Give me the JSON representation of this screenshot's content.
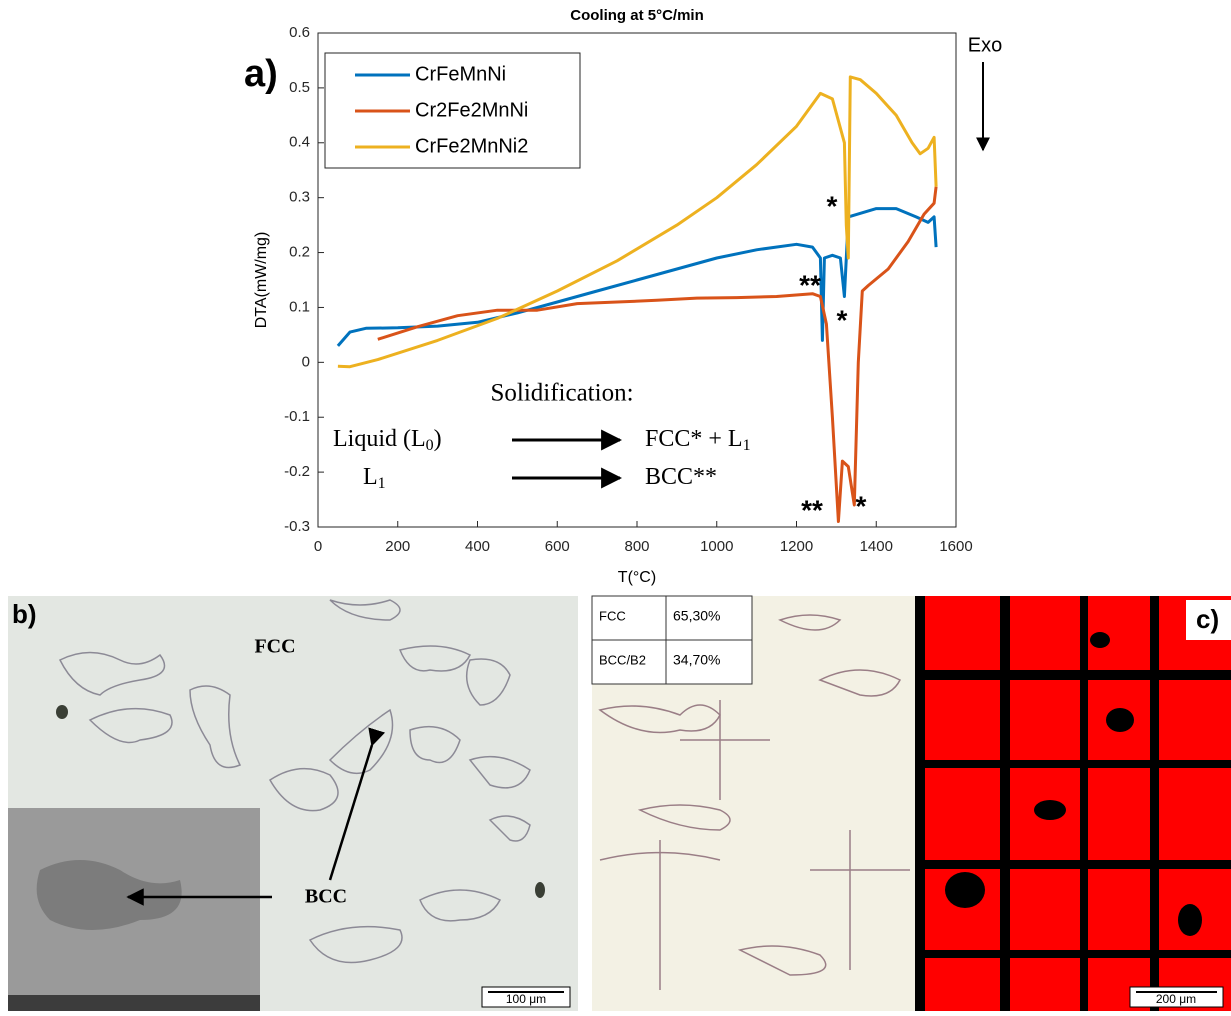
{
  "chart_data": {
    "type": "line",
    "panel_label": "a)",
    "title": "Cooling at 5°C/min",
    "xlabel": "T(°C)",
    "ylabel": "DTA(mW/mg)",
    "xlim": [
      0,
      1600
    ],
    "xticks": [
      0,
      200,
      400,
      600,
      800,
      1000,
      1200,
      1400,
      1600
    ],
    "ylim": [
      -0.3,
      0.6
    ],
    "yticks": [
      0.6,
      0.5,
      0.4,
      0.3,
      0.2,
      0.1,
      0,
      -0.1,
      -0.2,
      -0.3
    ],
    "grid": false,
    "legend": "top-left",
    "series": [
      {
        "name": "CrFeMnNi",
        "color": "#0072bd",
        "x": [
          50,
          80,
          120,
          200,
          300,
          400,
          500,
          600,
          700,
          800,
          900,
          1000,
          1100,
          1200,
          1240,
          1260,
          1265,
          1270,
          1290,
          1310,
          1320,
          1325,
          1330,
          1400,
          1450,
          1500,
          1530,
          1545,
          1550
        ],
        "values": [
          0.03,
          0.055,
          0.062,
          0.063,
          0.066,
          0.073,
          0.09,
          0.11,
          0.13,
          0.15,
          0.17,
          0.19,
          0.205,
          0.215,
          0.21,
          0.19,
          0.04,
          0.19,
          0.195,
          0.19,
          0.12,
          0.19,
          0.265,
          0.28,
          0.28,
          0.265,
          0.255,
          0.265,
          0.21
        ]
      },
      {
        "name": "Cr2Fe2MnNi",
        "color": "#d95319",
        "x": [
          150,
          250,
          350,
          450,
          550,
          650,
          750,
          850,
          950,
          1050,
          1150,
          1240,
          1260,
          1275,
          1290,
          1305,
          1315,
          1330,
          1345,
          1355,
          1365,
          1380,
          1430,
          1480,
          1520,
          1545,
          1550
        ],
        "values": [
          0.042,
          0.065,
          0.085,
          0.095,
          0.095,
          0.107,
          0.11,
          0.113,
          0.117,
          0.118,
          0.12,
          0.125,
          0.12,
          0.07,
          -0.1,
          -0.29,
          -0.18,
          -0.19,
          -0.26,
          0.0,
          0.13,
          0.14,
          0.17,
          0.22,
          0.27,
          0.29,
          0.32
        ]
      },
      {
        "name": "CrFe2MnNi2",
        "color": "#edb120",
        "x": [
          50,
          80,
          150,
          300,
          450,
          600,
          750,
          900,
          1000,
          1100,
          1200,
          1260,
          1290,
          1320,
          1325,
          1330,
          1335,
          1360,
          1400,
          1450,
          1490,
          1510,
          1530,
          1545,
          1550
        ],
        "values": [
          -0.007,
          -0.008,
          0.005,
          0.04,
          0.08,
          0.13,
          0.185,
          0.25,
          0.3,
          0.36,
          0.43,
          0.49,
          0.48,
          0.4,
          0.25,
          0.19,
          0.52,
          0.515,
          0.49,
          0.45,
          0.4,
          0.38,
          0.39,
          0.41,
          0.32
        ]
      }
    ],
    "exo_label": "Exo",
    "peak_marks": [
      "*",
      "**",
      "*",
      "**",
      "*"
    ],
    "solidification": {
      "heading": "Solidification:",
      "rows": [
        {
          "left": [
            "Liquid (L",
            "0",
            ")"
          ],
          "right": [
            "FCC* + L",
            "1"
          ]
        },
        {
          "left": [
            "L",
            "1"
          ],
          "right": [
            "BCC**"
          ]
        }
      ]
    }
  },
  "panels": {
    "b": {
      "label": "b)",
      "phase_top": "FCC",
      "phase_arrow": "BCC",
      "scale": "100 μm"
    },
    "c": {
      "label": "c)",
      "scale": "200 μm",
      "table": [
        [
          "FCC",
          "65,30%"
        ],
        [
          "BCC/B2",
          "34,70%"
        ]
      ]
    }
  }
}
